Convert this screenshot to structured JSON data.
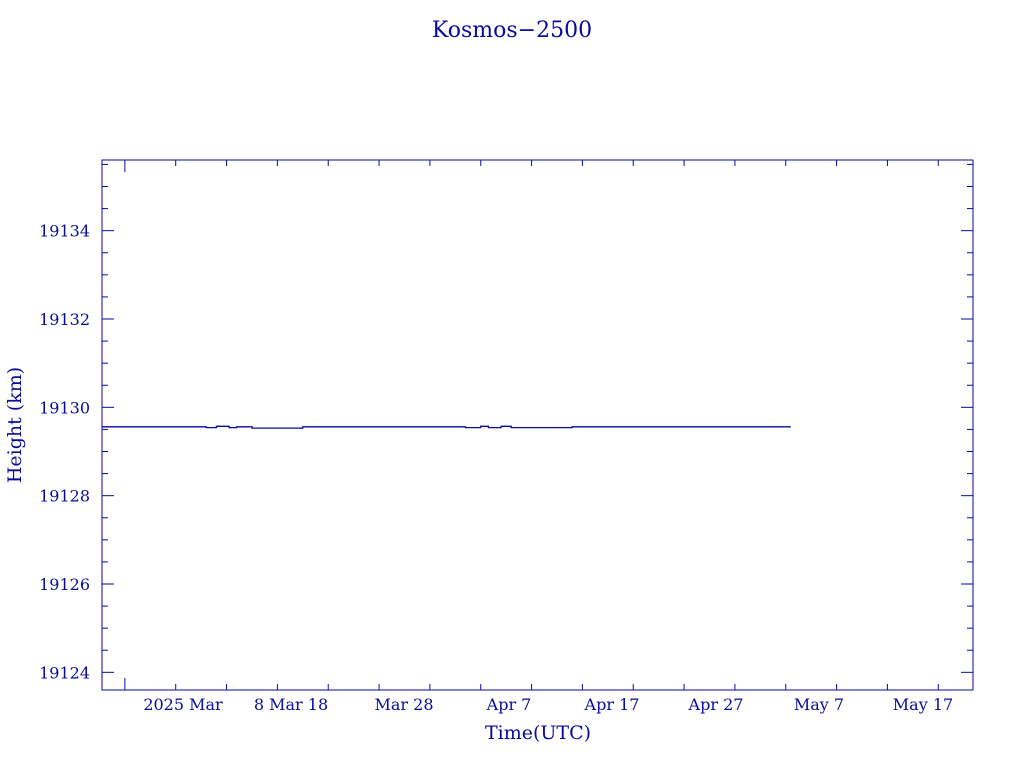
{
  "chart_data": {
    "type": "line",
    "title": "Kosmos−2500",
    "xlabel": "Time(UTC)",
    "ylabel": "Height (km)",
    "ylim": [
      19123.6,
      19135.6
    ],
    "xlim": [
      "2025-02-24T18:00",
      "2025-05-21T10:00"
    ],
    "x_ticks": [
      {
        "date": "2025-02-27",
        "label": "2025 Mar  8",
        "major": true
      },
      {
        "date": "2025-03-08",
        "label": "",
        "major": true
      },
      {
        "date": "2025-03-18",
        "label": "Mar 18",
        "major": true
      },
      {
        "date": "2025-03-28",
        "label": "Mar 28",
        "major": true
      },
      {
        "date": "2025-04-07",
        "label": "Apr  7",
        "major": true
      },
      {
        "date": "2025-04-17",
        "label": "Apr 17",
        "major": true
      },
      {
        "date": "2025-04-27",
        "label": "Apr 27",
        "major": true
      },
      {
        "date": "2025-05-07",
        "label": "May  7",
        "major": true
      },
      {
        "date": "2025-05-17",
        "label": "May 17",
        "major": true
      }
    ],
    "x_tick_labels_raw": [
      "2025 Mar",
      "8 Mar 18",
      "Mar 28",
      "Apr  7",
      "Apr 17",
      "Apr 27",
      "May  7",
      "May 17"
    ],
    "y_ticks": [
      19124,
      19126,
      19128,
      19130,
      19132,
      19134
    ],
    "y_minor_step": 0.5,
    "grid": false,
    "series": [
      {
        "color": "#0a0a9a",
        "points": [
          [
            "2025-02-24T18:00",
            19129.56
          ],
          [
            "2025-03-07T00:00",
            19129.56
          ],
          [
            "2025-03-07T00:00",
            19129.54
          ],
          [
            "2025-03-08T00:00",
            19129.54
          ],
          [
            "2025-03-08T00:00",
            19129.57
          ],
          [
            "2025-03-09T06:00",
            19129.57
          ],
          [
            "2025-03-09T06:00",
            19129.54
          ],
          [
            "2025-03-10T00:00",
            19129.54
          ],
          [
            "2025-03-10T00:00",
            19129.56
          ],
          [
            "2025-03-11T12:00",
            19129.56
          ],
          [
            "2025-03-11T12:00",
            19129.53
          ],
          [
            "2025-03-16T12:00",
            19129.53
          ],
          [
            "2025-03-16T12:00",
            19129.56
          ],
          [
            "2025-04-01T12:00",
            19129.56
          ],
          [
            "2025-04-01T12:00",
            19129.54
          ],
          [
            "2025-04-03T00:00",
            19129.54
          ],
          [
            "2025-04-03T00:00",
            19129.57
          ],
          [
            "2025-04-03T18:00",
            19129.57
          ],
          [
            "2025-04-03T18:00",
            19129.54
          ],
          [
            "2025-04-05T00:00",
            19129.54
          ],
          [
            "2025-04-05T00:00",
            19129.57
          ],
          [
            "2025-04-06T00:00",
            19129.57
          ],
          [
            "2025-04-06T00:00",
            19129.54
          ],
          [
            "2025-04-12T00:00",
            19129.54
          ],
          [
            "2025-04-12T00:00",
            19129.56
          ],
          [
            "2025-05-03T12:00",
            19129.56
          ]
        ]
      }
    ]
  }
}
